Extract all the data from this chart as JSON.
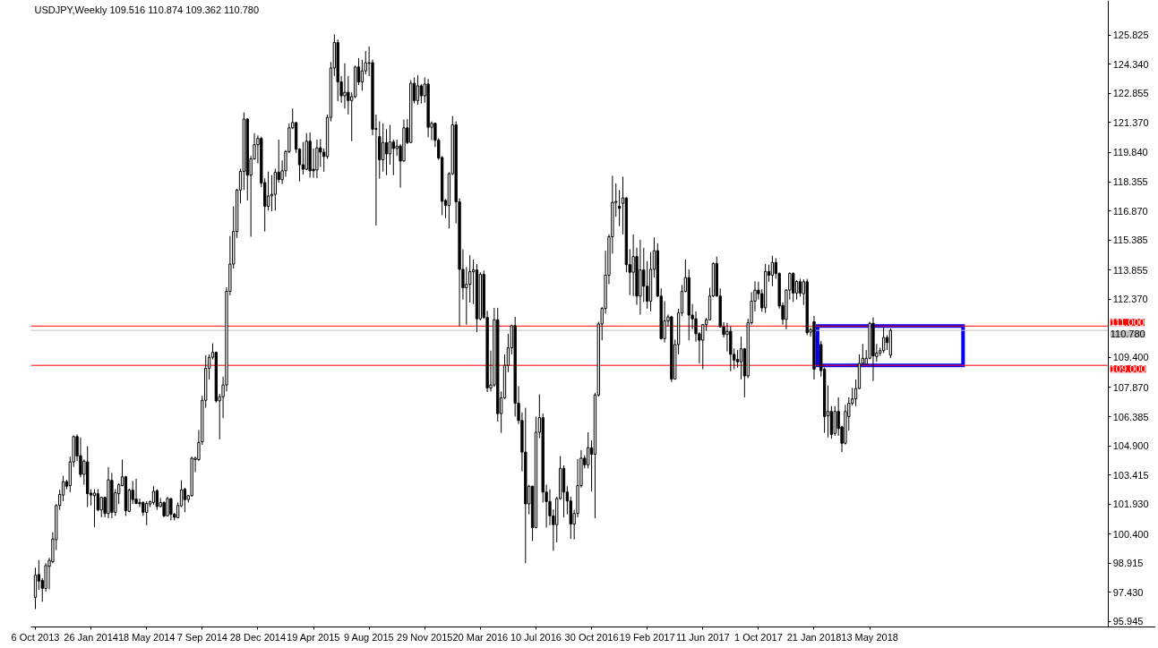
{
  "chart_data": {
    "type": "candlestick",
    "title": "USDJPY,Weekly  109.516 110.874 109.362 110.780",
    "color": "#000000",
    "x": [
      "2013-10-06",
      "2013-10-13",
      "2013-10-20",
      "2013-10-27",
      "2013-11-03",
      "2013-11-10",
      "2013-11-17",
      "2013-11-24",
      "2013-12-01",
      "2013-12-08",
      "2013-12-15",
      "2013-12-22",
      "2013-12-29",
      "2014-01-05",
      "2014-01-12",
      "2014-01-19",
      "2014-01-26",
      "2014-02-02",
      "2014-02-09",
      "2014-02-16",
      "2014-02-23",
      "2014-03-02",
      "2014-03-09",
      "2014-03-16",
      "2014-03-23",
      "2014-03-30",
      "2014-04-06",
      "2014-04-13",
      "2014-04-20",
      "2014-04-27",
      "2014-05-04",
      "2014-05-11",
      "2014-05-18",
      "2014-05-25",
      "2014-06-01",
      "2014-06-08",
      "2014-06-15",
      "2014-06-22",
      "2014-06-29",
      "2014-07-06",
      "2014-07-13",
      "2014-07-20",
      "2014-07-27",
      "2014-08-03",
      "2014-08-10",
      "2014-08-17",
      "2014-08-24",
      "2014-08-31",
      "2014-09-07",
      "2014-09-14",
      "2014-09-21",
      "2014-09-28",
      "2014-10-05",
      "2014-10-12",
      "2014-10-19",
      "2014-10-26",
      "2014-11-02",
      "2014-11-09",
      "2014-11-16",
      "2014-11-23",
      "2014-11-30",
      "2014-12-07",
      "2014-12-14",
      "2014-12-21",
      "2014-12-28",
      "2015-01-04",
      "2015-01-11",
      "2015-01-18",
      "2015-01-25",
      "2015-02-01",
      "2015-02-08",
      "2015-02-15",
      "2015-02-22",
      "2015-03-01",
      "2015-03-08",
      "2015-03-15",
      "2015-03-22",
      "2015-03-29",
      "2015-04-05",
      "2015-04-12",
      "2015-04-19",
      "2015-04-26",
      "2015-05-03",
      "2015-05-10",
      "2015-05-17",
      "2015-05-24",
      "2015-05-31",
      "2015-06-07",
      "2015-06-14",
      "2015-06-21",
      "2015-06-28",
      "2015-07-05",
      "2015-07-12",
      "2015-07-19",
      "2015-07-26",
      "2015-08-02",
      "2015-08-09",
      "2015-08-16",
      "2015-08-23",
      "2015-08-30",
      "2015-09-06",
      "2015-09-13",
      "2015-09-20",
      "2015-09-27",
      "2015-10-04",
      "2015-10-11",
      "2015-10-18",
      "2015-10-25",
      "2015-11-01",
      "2015-11-08",
      "2015-11-15",
      "2015-11-22",
      "2015-11-29",
      "2015-12-06",
      "2015-12-13",
      "2015-12-20",
      "2015-12-27",
      "2016-01-03",
      "2016-01-10",
      "2016-01-17",
      "2016-01-24",
      "2016-01-31",
      "2016-02-07",
      "2016-02-14",
      "2016-02-21",
      "2016-02-28",
      "2016-03-06",
      "2016-03-13",
      "2016-03-20",
      "2016-03-27",
      "2016-04-03",
      "2016-04-10",
      "2016-04-17",
      "2016-04-24",
      "2016-05-01",
      "2016-05-08",
      "2016-05-15",
      "2016-05-22",
      "2016-05-29",
      "2016-06-05",
      "2016-06-12",
      "2016-06-19",
      "2016-06-26",
      "2016-07-03",
      "2016-07-10",
      "2016-07-17",
      "2016-07-24",
      "2016-07-31",
      "2016-08-07",
      "2016-08-14",
      "2016-08-21",
      "2016-08-28",
      "2016-09-04",
      "2016-09-11",
      "2016-09-18",
      "2016-09-25",
      "2016-10-02",
      "2016-10-09",
      "2016-10-16",
      "2016-10-23",
      "2016-10-30",
      "2016-11-06",
      "2016-11-13",
      "2016-11-20",
      "2016-11-27",
      "2016-12-04",
      "2016-12-11",
      "2016-12-18",
      "2016-12-25",
      "2017-01-01",
      "2017-01-08",
      "2017-01-15",
      "2017-01-22",
      "2017-01-29",
      "2017-02-05",
      "2017-02-12",
      "2017-02-19",
      "2017-02-26",
      "2017-03-05",
      "2017-03-12",
      "2017-03-19",
      "2017-03-26",
      "2017-04-02",
      "2017-04-09",
      "2017-04-16",
      "2017-04-23",
      "2017-04-30",
      "2017-05-07",
      "2017-05-14",
      "2017-05-21",
      "2017-05-28",
      "2017-06-04",
      "2017-06-11",
      "2017-06-18",
      "2017-06-25",
      "2017-07-02",
      "2017-07-09",
      "2017-07-16",
      "2017-07-23",
      "2017-07-30",
      "2017-08-06",
      "2017-08-13",
      "2017-08-20",
      "2017-08-27",
      "2017-09-03",
      "2017-09-10",
      "2017-09-17",
      "2017-09-24",
      "2017-10-01",
      "2017-10-08",
      "2017-10-15",
      "2017-10-22",
      "2017-10-29",
      "2017-11-05",
      "2017-11-12",
      "2017-11-19",
      "2017-11-26",
      "2017-12-03",
      "2017-12-10",
      "2017-12-17",
      "2017-12-24",
      "2017-12-31",
      "2018-01-07",
      "2018-01-14",
      "2018-01-21",
      "2018-02-04",
      "2018-02-11",
      "2018-02-18",
      "2018-02-25",
      "2018-03-04",
      "2018-03-11",
      "2018-03-18",
      "2018-03-25",
      "2018-04-01",
      "2018-04-08",
      "2018-04-15",
      "2018-04-22",
      "2018-04-29",
      "2018-05-06",
      "2018-05-13",
      "2018-05-20",
      "2018-05-27",
      "2018-06-03",
      "2018-06-10",
      "2018-06-17",
      "2018-06-24"
    ],
    "ohlc": [
      [
        97.18,
        98.69,
        96.58,
        98.31
      ],
      [
        98.34,
        99.07,
        97.56,
        98.01
      ],
      [
        98.04,
        98.16,
        96.95,
        97.63
      ],
      [
        97.63,
        98.92,
        97.48,
        98.8
      ],
      [
        98.76,
        99.2,
        97.59,
        99.07
      ],
      [
        98.99,
        100.5,
        98.92,
        100.15
      ],
      [
        100.12,
        101.93,
        99.59,
        101.86
      ],
      [
        101.86,
        102.66,
        101.63,
        102.42
      ],
      [
        102.39,
        103.37,
        102.08,
        103.07
      ],
      [
        103.07,
        103.17,
        102.69,
        102.84
      ],
      [
        102.87,
        104.35,
        102.54,
        104.08
      ],
      [
        104.08,
        105.43,
        103.82,
        105.37
      ],
      [
        105.37,
        105.48,
        104.12,
        104.38
      ],
      [
        104.4,
        105.33,
        103.29,
        103.44
      ],
      [
        103.44,
        104.2,
        102.91,
        104.12
      ],
      [
        104.08,
        104.88,
        101.78,
        102.46
      ],
      [
        102.49,
        102.69,
        101.86,
        102.39
      ],
      [
        102.36,
        102.69,
        100.76,
        102.49
      ],
      [
        102.46,
        102.69,
        101.56,
        101.63
      ],
      [
        101.63,
        102.31,
        101.26,
        102.27
      ],
      [
        102.27,
        102.31,
        101.26,
        101.45
      ],
      [
        101.45,
        103.82,
        101.21,
        103.17
      ],
      [
        103.14,
        103.52,
        101.21,
        101.51
      ],
      [
        101.51,
        102.69,
        101.33,
        102.51
      ],
      [
        102.46,
        102.99,
        101.93,
        102.91
      ],
      [
        102.87,
        104.2,
        102.84,
        103.32
      ],
      [
        103.32,
        103.37,
        101.33,
        101.59
      ],
      [
        101.56,
        102.72,
        101.51,
        102.64
      ],
      [
        102.64,
        103.11,
        101.93,
        102.16
      ],
      [
        102.19,
        103.22,
        101.93,
        101.96
      ],
      [
        102.01,
        102.21,
        101.78,
        101.95
      ],
      [
        102.01,
        102.08,
        101.33,
        101.51
      ],
      [
        101.51,
        102.08,
        100.85,
        101.96
      ],
      [
        101.93,
        102.11,
        101.78,
        102.05
      ],
      [
        102.01,
        102.84,
        101.9,
        102.58
      ],
      [
        102.61,
        102.69,
        101.63,
        101.81
      ],
      [
        101.81,
        102.24,
        101.78,
        102.01
      ],
      [
        102.01,
        102.08,
        101.26,
        101.33
      ],
      [
        101.33,
        102.31,
        101.3,
        102.21
      ],
      [
        102.21,
        102.24,
        101.1,
        101.41
      ],
      [
        101.41,
        101.49,
        101.1,
        101.26
      ],
      [
        101.24,
        102.01,
        101.21,
        101.86
      ],
      [
        101.84,
        103.14,
        101.78,
        102.66
      ],
      [
        102.69,
        102.76,
        101.51,
        102.16
      ],
      [
        102.16,
        102.39,
        102.01,
        102.36
      ],
      [
        102.36,
        104.35,
        102.31,
        104.27
      ],
      [
        104.2,
        104.35,
        103.56,
        104.27
      ],
      [
        104.2,
        105.71,
        104.12,
        105.07
      ],
      [
        105.1,
        107.45,
        104.95,
        107.22
      ],
      [
        107.22,
        109.51,
        106.84,
        108.85
      ],
      [
        108.85,
        109.56,
        108.27,
        109.41
      ],
      [
        109.41,
        110.12,
        109.3,
        109.66
      ],
      [
        109.66,
        109.7,
        107.1,
        107.19
      ],
      [
        107.19,
        107.55,
        105.23,
        107.4
      ],
      [
        107.4,
        108.42,
        106.31,
        108.0
      ],
      [
        108.0,
        112.98,
        107.67,
        112.77
      ],
      [
        112.77,
        115.59,
        112.57,
        114.16
      ],
      [
        114.16,
        117.1,
        113.93,
        115.82
      ],
      [
        115.82,
        118.0,
        115.49,
        117.93
      ],
      [
        117.93,
        119.02,
        117.25,
        118.88
      ],
      [
        118.88,
        121.89,
        117.93,
        121.55
      ],
      [
        121.55,
        121.58,
        117.4,
        118.69
      ],
      [
        118.69,
        119.67,
        115.55,
        119.52
      ],
      [
        119.52,
        120.83,
        119.47,
        120.24
      ],
      [
        120.24,
        120.72,
        119.29,
        120.56
      ],
      [
        120.56,
        120.65,
        118.08,
        118.28
      ],
      [
        118.31,
        118.53,
        115.82,
        117.1
      ],
      [
        117.1,
        118.87,
        116.88,
        117.63
      ],
      [
        117.63,
        118.69,
        116.85,
        117.71
      ],
      [
        117.71,
        119.02,
        116.88,
        118.84
      ],
      [
        118.84,
        120.5,
        118.31,
        118.46
      ],
      [
        118.46,
        119.44,
        118.23,
        118.91
      ],
      [
        118.91,
        119.97,
        118.61,
        119.89
      ],
      [
        119.89,
        121.33,
        119.82,
        121.1
      ],
      [
        121.1,
        122.08,
        121.03,
        121.37
      ],
      [
        121.37,
        121.4,
        119.82,
        120.01
      ],
      [
        120.01,
        120.07,
        118.36,
        119.22
      ],
      [
        119.22,
        120.38,
        118.72,
        118.99
      ],
      [
        118.99,
        120.83,
        118.95,
        120.42
      ],
      [
        120.42,
        120.87,
        118.57,
        118.91
      ],
      [
        118.99,
        120.05,
        118.55,
        118.91
      ],
      [
        118.95,
        120.5,
        118.53,
        120.08
      ],
      [
        120.08,
        120.53,
        119.11,
        119.86
      ],
      [
        119.86,
        120.05,
        118.87,
        119.64
      ],
      [
        119.64,
        121.78,
        119.52,
        121.63
      ],
      [
        121.63,
        124.45,
        121.43,
        124.15
      ],
      [
        124.15,
        125.86,
        123.74,
        125.45
      ],
      [
        125.45,
        125.6,
        122.46,
        123.44
      ],
      [
        123.44,
        123.74,
        122.38,
        122.73
      ],
      [
        122.73,
        124.39,
        122.08,
        122.91
      ],
      [
        122.91,
        123.74,
        121.78,
        122.49
      ],
      [
        122.49,
        122.91,
        120.42,
        122.69
      ],
      [
        122.69,
        124.27,
        122.61,
        124.2
      ],
      [
        124.2,
        124.65,
        123.29,
        123.44
      ],
      [
        123.44,
        124.57,
        122.99,
        124.0
      ],
      [
        124.0,
        125.02,
        123.82,
        124.42
      ],
      [
        124.39,
        125.25,
        123.74,
        124.42
      ],
      [
        124.42,
        124.57,
        120.72,
        121.03
      ],
      [
        121.03,
        121.78,
        116.12,
        121.06
      ],
      [
        120.65,
        121.43,
        118.51,
        119.47
      ],
      [
        119.47,
        121.33,
        118.87,
        120.35
      ],
      [
        120.35,
        121.03,
        118.69,
        119.77
      ],
      [
        119.77,
        121.25,
        119.22,
        120.38
      ],
      [
        120.38,
        120.5,
        118.69,
        120.05
      ],
      [
        120.05,
        120.5,
        119.67,
        120.17
      ],
      [
        120.17,
        120.27,
        118.05,
        119.41
      ],
      [
        119.41,
        121.52,
        119.37,
        121.1
      ],
      [
        121.1,
        121.55,
        120.27,
        120.35
      ],
      [
        120.35,
        123.52,
        120.32,
        123.37
      ],
      [
        123.37,
        123.67,
        122.34,
        122.49
      ],
      [
        122.49,
        123.79,
        122.28,
        123.24
      ],
      [
        123.24,
        123.33,
        122.34,
        122.73
      ],
      [
        122.73,
        123.67,
        122.38,
        123.33
      ],
      [
        123.33,
        123.59,
        120.62,
        121.13
      ],
      [
        121.13,
        121.43,
        120.47,
        121.33
      ],
      [
        121.33,
        121.37,
        120.12,
        120.47
      ],
      [
        120.47,
        120.57,
        119.47,
        119.56
      ],
      [
        119.59,
        119.67,
        116.65,
        117.36
      ],
      [
        117.4,
        117.48,
        116.5,
        117.15
      ],
      [
        117.15,
        118.84,
        115.97,
        118.76
      ],
      [
        118.76,
        121.7,
        118.69,
        121.25
      ],
      [
        121.25,
        121.43,
        116.24,
        117.33
      ],
      [
        117.33,
        117.51,
        110.99,
        113.89
      ],
      [
        113.89,
        114.91,
        112.35,
        112.95
      ],
      [
        112.95,
        114.01,
        111.07,
        113.13
      ],
      [
        113.13,
        114.61,
        112.2,
        113.77
      ],
      [
        113.77,
        114.39,
        112.12,
        113.86
      ],
      [
        113.86,
        114.16,
        110.69,
        111.37
      ],
      [
        111.37,
        113.74,
        111.29,
        113.63
      ],
      [
        113.63,
        113.83,
        111.37,
        111.44
      ],
      [
        111.44,
        111.78,
        107.64,
        107.85
      ],
      [
        107.85,
        109.75,
        107.67,
        108.0
      ],
      [
        108.0,
        111.93,
        107.9,
        111.32
      ],
      [
        111.32,
        111.93,
        106.13,
        106.54
      ],
      [
        106.54,
        107.67,
        105.56,
        107.34
      ],
      [
        107.34,
        109.56,
        107.29,
        109.0
      ],
      [
        109.0,
        110.61,
        108.65,
        109.89
      ],
      [
        109.89,
        111.07,
        109.56,
        111.02
      ],
      [
        111.02,
        111.47,
        106.39,
        107.07
      ],
      [
        107.07,
        107.94,
        106.01,
        106.19
      ],
      [
        106.19,
        106.6,
        103.6,
        104.58
      ],
      [
        104.58,
        106.84,
        98.92,
        101.94
      ],
      [
        101.94,
        102.9,
        101.41,
        102.84
      ],
      [
        102.84,
        102.87,
        100.05,
        100.73
      ],
      [
        100.73,
        106.39,
        100.7,
        105.59
      ],
      [
        105.59,
        107.52,
        105.29,
        106.34
      ],
      [
        106.34,
        106.54,
        102.01,
        102.54
      ],
      [
        102.54,
        102.92,
        100.73,
        102.06
      ],
      [
        102.06,
        102.69,
        100.85,
        101.33
      ],
      [
        101.33,
        101.66,
        99.55,
        100.88
      ],
      [
        100.88,
        102.31,
        99.98,
        102.21
      ],
      [
        102.21,
        104.38,
        102.16,
        103.75
      ],
      [
        103.75,
        103.9,
        101.26,
        102.54
      ],
      [
        102.54,
        102.84,
        101.41,
        102.09
      ],
      [
        102.09,
        102.31,
        100.16,
        100.91
      ],
      [
        100.91,
        101.63,
        100.13,
        101.45
      ],
      [
        101.45,
        104.23,
        101.26,
        102.87
      ],
      [
        102.87,
        104.68,
        102.77,
        104.27
      ],
      [
        104.27,
        104.42,
        103.75,
        103.93
      ],
      [
        103.93,
        105.59,
        103.75,
        104.8
      ],
      [
        104.8,
        105.18,
        102.57,
        104.47
      ],
      [
        104.47,
        107.6,
        101.21,
        107.49
      ],
      [
        107.49,
        111.22,
        107.4,
        111.11
      ],
      [
        111.11,
        111.97,
        110.27,
        111.9
      ],
      [
        111.9,
        114.84,
        111.63,
        113.59
      ],
      [
        113.59,
        115.67,
        113.13,
        115.55
      ],
      [
        115.55,
        118.66,
        114.69,
        117.3
      ],
      [
        117.3,
        118.27,
        116.57,
        117.35
      ],
      [
        117.1,
        117.93,
        116.09,
        117.0
      ],
      [
        117.25,
        118.61,
        115.67,
        117.53
      ],
      [
        117.53,
        117.56,
        113.74,
        114.13
      ],
      [
        114.13,
        114.92,
        112.58,
        113.74
      ],
      [
        113.74,
        115.67,
        112.53,
        114.54
      ],
      [
        114.54,
        114.99,
        112.08,
        112.53
      ],
      [
        112.53,
        115.4,
        111.59,
        113.86
      ],
      [
        113.86,
        114.99,
        112.23,
        113.03
      ],
      [
        113.03,
        114.31,
        111.89,
        112.27
      ],
      [
        112.27,
        114.76,
        111.75,
        113.89
      ],
      [
        113.89,
        115.52,
        113.48,
        114.84
      ],
      [
        114.84,
        115.22,
        112.47,
        112.53
      ],
      [
        112.53,
        112.92,
        110.31,
        110.36
      ],
      [
        110.36,
        112.27,
        110.16,
        111.26
      ],
      [
        111.26,
        111.59,
        110.99,
        111.47
      ],
      [
        111.47,
        111.52,
        108.15,
        108.3
      ],
      [
        108.3,
        110.31,
        108.27,
        110.06
      ],
      [
        110.06,
        111.89,
        109.56,
        111.67
      ],
      [
        111.67,
        113.1,
        111.52,
        112.77
      ],
      [
        112.77,
        114.39,
        112.72,
        113.47
      ],
      [
        113.47,
        113.89,
        110.27,
        111.56
      ],
      [
        111.56,
        112.12,
        110.84,
        111.37
      ],
      [
        111.37,
        111.75,
        110.21,
        110.61
      ],
      [
        110.61,
        110.69,
        109.1,
        110.28
      ],
      [
        110.28,
        111.1,
        108.8,
        111.07
      ],
      [
        111.07,
        111.42,
        110.76,
        111.32
      ],
      [
        111.32,
        112.95,
        111.29,
        112.53
      ],
      [
        112.53,
        114.24,
        112.47,
        114.19
      ],
      [
        114.19,
        114.54,
        112.5,
        112.53
      ],
      [
        112.53,
        112.92,
        110.92,
        110.96
      ],
      [
        110.96,
        111.2,
        110.42,
        110.57
      ],
      [
        110.57,
        111.17,
        109.71,
        110.73
      ],
      [
        110.73,
        110.99,
        108.7,
        109.56
      ],
      [
        109.56,
        109.86,
        108.8,
        109.26
      ],
      [
        109.3,
        109.78,
        108.88,
        109.18
      ],
      [
        109.18,
        110.46,
        108.28,
        109.84
      ],
      [
        109.84,
        109.89,
        107.37,
        108.46
      ],
      [
        108.46,
        111.37,
        108.35,
        111.17
      ],
      [
        111.17,
        112.73,
        111.07,
        112.27
      ],
      [
        112.27,
        113.28,
        111.75,
        112.83
      ],
      [
        112.83,
        113.26,
        112.35,
        112.65
      ],
      [
        112.65,
        112.88,
        111.72,
        111.93
      ],
      [
        111.93,
        114.16,
        111.67,
        113.78
      ],
      [
        113.78,
        114.13,
        113.26,
        113.59
      ],
      [
        113.59,
        114.58,
        113.03,
        114.24
      ],
      [
        114.24,
        114.46,
        113.41,
        113.68
      ],
      [
        113.68,
        113.74,
        111.89,
        112.02
      ],
      [
        112.05,
        112.2,
        111.07,
        111.34
      ],
      [
        111.34,
        112.88,
        110.84,
        112.83
      ],
      [
        112.83,
        113.74,
        112.35,
        113.68
      ],
      [
        113.68,
        113.74,
        112.23,
        112.68
      ],
      [
        112.68,
        113.33,
        112.35,
        113.28
      ],
      [
        113.26,
        113.41,
        112.5,
        112.68
      ],
      [
        112.65,
        113.38,
        112.08,
        113.26
      ],
      [
        113.26,
        113.41,
        110.54,
        110.66
      ],
      [
        110.69,
        110.92,
        110.46,
        110.81
      ],
      [
        111.22,
        111.52,
        108.28,
        108.8
      ],
      [
        110.06,
        110.24,
        108.43,
        108.73
      ],
      [
        108.8,
        108.88,
        105.56,
        106.39
      ],
      [
        106.43,
        107.97,
        105.33,
        106.65
      ],
      [
        106.65,
        106.92,
        105.26,
        105.48
      ],
      [
        105.53,
        106.92,
        105.41,
        106.65
      ],
      [
        106.65,
        107.37,
        105.41,
        105.78
      ],
      [
        105.86,
        105.93,
        104.58,
        105.03
      ],
      [
        105.03,
        106.99,
        104.96,
        106.65
      ],
      [
        106.39,
        107.37,
        105.68,
        107.07
      ],
      [
        107.07,
        107.85,
        106.95,
        107.29
      ],
      [
        107.29,
        108.28,
        106.92,
        107.82
      ],
      [
        107.82,
        109.56,
        107.79,
        109.1
      ],
      [
        109.1,
        110.09,
        109.03,
        109.36
      ],
      [
        109.06,
        109.78,
        109.03,
        109.36
      ],
      [
        109.36,
        111.22,
        109.3,
        111.14
      ],
      [
        111.14,
        111.44,
        108.2,
        109.48
      ],
      [
        109.45,
        110.09,
        109.18,
        109.63
      ],
      [
        109.63,
        109.9,
        109.48,
        109.75
      ],
      [
        109.75,
        110.92,
        109.63,
        110.42
      ],
      [
        110.42,
        110.54,
        109.78,
        110.16
      ],
      [
        109.516,
        110.874,
        109.362,
        110.78
      ]
    ],
    "xlim": [
      "2013-09-27",
      "2019-12-10"
    ],
    "xticks": [
      {
        "value": "2013-10-06",
        "label": "6 Oct 2013"
      },
      {
        "value": "2014-01-26",
        "label": "26 Jan 2014"
      },
      {
        "value": "2014-05-18",
        "label": "18 May 2014"
      },
      {
        "value": "2014-09-07",
        "label": "7 Sep 2014"
      },
      {
        "value": "2014-12-28",
        "label": "28 Dec 2014"
      },
      {
        "value": "2015-04-19",
        "label": "19 Apr 2015"
      },
      {
        "value": "2015-08-09",
        "label": "9 Aug 2015"
      },
      {
        "value": "2015-11-29",
        "label": "29 Nov 2015"
      },
      {
        "value": "2016-03-20",
        "label": "20 Mar 2016"
      },
      {
        "value": "2016-07-10",
        "label": "10 Jul 2016"
      },
      {
        "value": "2016-10-30",
        "label": "30 Oct 2016"
      },
      {
        "value": "2017-02-19",
        "label": "19 Feb 2017"
      },
      {
        "value": "2017-06-11",
        "label": "11 Jun 2017"
      },
      {
        "value": "2017-10-01",
        "label": "1 Oct 2017"
      },
      {
        "value": "2018-01-21",
        "label": "21 Jan 2018"
      },
      {
        "value": "2018-05-13",
        "label": "13 May 2018"
      }
    ],
    "ylim": [
      95.67,
      127.59
    ],
    "yticks": [
      125.825,
      {
        "value": 124.34,
        "label": "124.340"
      },
      122.855,
      {
        "value": 121.37,
        "label": "121.370"
      },
      {
        "value": 119.84,
        "label": "119.840"
      },
      118.355,
      {
        "value": 116.87,
        "label": "116.870"
      },
      115.385,
      113.855,
      {
        "value": 112.37,
        "label": "112.370"
      },
      {
        "value": 109.4,
        "label": "109.400"
      },
      {
        "value": 107.87,
        "label": "107.870"
      },
      106.385,
      {
        "value": 104.9,
        "label": "104.900"
      },
      103.415,
      {
        "value": 101.93,
        "label": "101.930"
      },
      {
        "value": 100.4,
        "label": "100.400"
      },
      98.915,
      {
        "value": 97.43,
        "label": "97.430"
      },
      95.945
    ],
    "ref_lines": [
      {
        "axis": "y",
        "value": 111,
        "label": "111.000",
        "color": "#ff0000"
      },
      {
        "axis": "y",
        "value": 110.78,
        "label": "110.780",
        "color": "#c0c0c0"
      },
      {
        "axis": "y",
        "value": 109,
        "label": "109.000",
        "color": "#ff0000"
      }
    ]
  }
}
